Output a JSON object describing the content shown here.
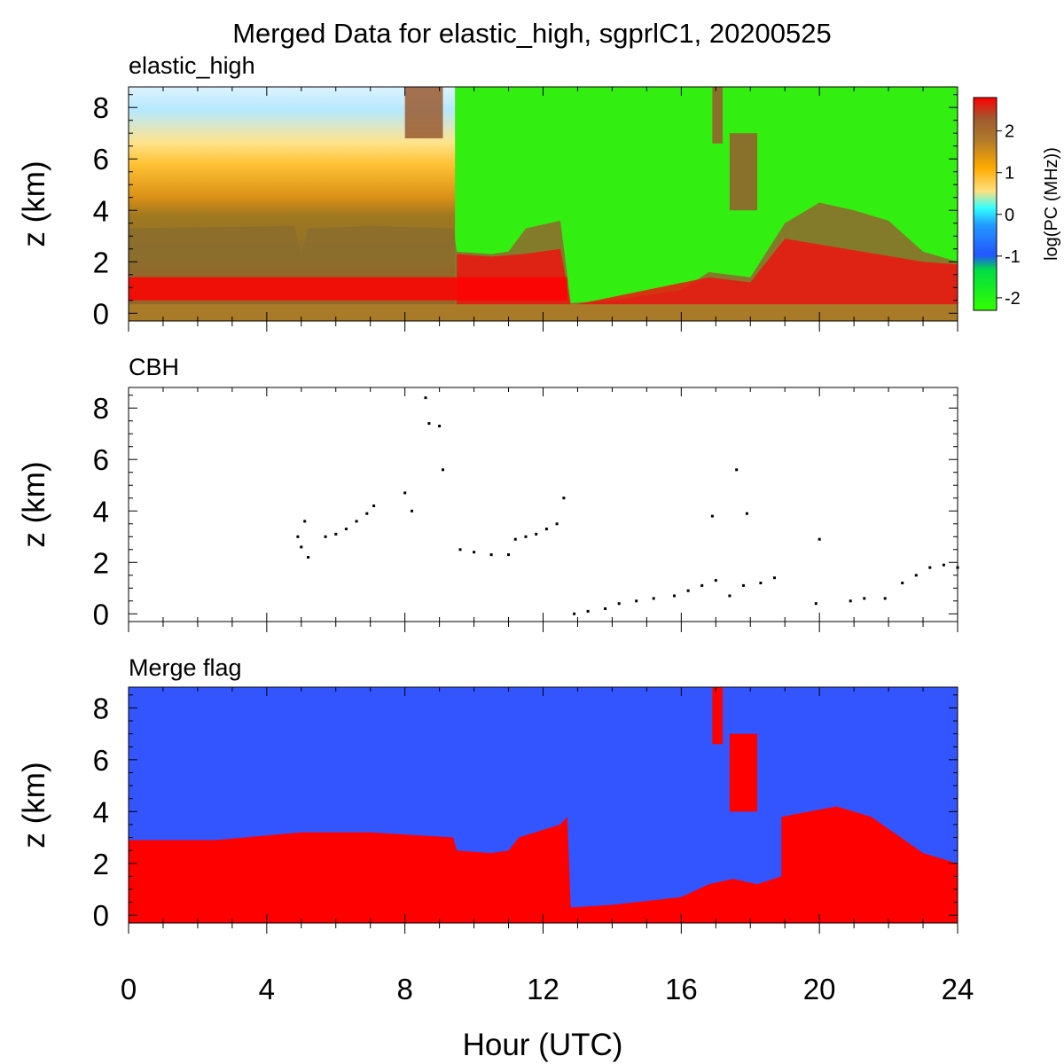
{
  "figure": {
    "title": "Merged Data for elastic_high, sgprlC1, 20200525",
    "xlabel": "Hour (UTC)"
  },
  "chart_data": [
    {
      "type": "heatmap",
      "panel_title": "elastic_high",
      "xlabel": "Hour (UTC)",
      "ylabel": "z (km)",
      "xlim": [
        0,
        24
      ],
      "ylim": [
        -0.3,
        8.8
      ],
      "xticks": [
        0,
        4,
        8,
        12,
        16,
        20,
        24
      ],
      "yticks": [
        0,
        2,
        4,
        6,
        8
      ],
      "colorbar": {
        "label": "log(PC (MHz))",
        "range": [
          -2.3,
          2.8
        ],
        "ticks": [
          2,
          1,
          0,
          -1,
          -2
        ],
        "colormap": [
          "#33ff00",
          "#2255ff",
          "#33ffff",
          "#ffaa00",
          "#996633",
          "#ff0000"
        ]
      },
      "surface_layer_top_km": [
        [
          0,
          3.3
        ],
        [
          4.8,
          3.4
        ],
        [
          5.0,
          2.3
        ],
        [
          5.2,
          3.3
        ],
        [
          7.0,
          3.4
        ],
        [
          9.4,
          3.3
        ],
        [
          9.5,
          2.4
        ],
        [
          10.5,
          2.3
        ],
        [
          11.0,
          2.4
        ],
        [
          11.5,
          3.3
        ],
        [
          12.5,
          3.6
        ],
        [
          12.8,
          0.4
        ],
        [
          14.0,
          0.5
        ],
        [
          16.0,
          0.9
        ],
        [
          16.8,
          1.6
        ],
        [
          18.0,
          1.4
        ],
        [
          19.0,
          3.5
        ],
        [
          20.0,
          4.3
        ],
        [
          21.0,
          4.0
        ],
        [
          22.0,
          3.6
        ],
        [
          23.0,
          2.4
        ],
        [
          24.0,
          2.0
        ]
      ],
      "cloud_features": [
        {
          "name": "elevated cloud near 8h",
          "x": [
            8.0,
            9.1
          ],
          "z": [
            8.8,
            6.8
          ]
        },
        {
          "name": "elevated cloud near 17h",
          "x": [
            16.9,
            17.2
          ],
          "z": [
            8.8,
            6.6
          ]
        },
        {
          "name": "cloud layer 17.4-18.2h",
          "x": [
            17.4,
            18.2
          ],
          "z": [
            7.0,
            4.0
          ]
        }
      ]
    },
    {
      "type": "scatter",
      "panel_title": "CBH",
      "ylabel": "z (km)",
      "xlim": [
        0,
        24
      ],
      "ylim": [
        -0.3,
        8.8
      ],
      "yticks": [
        0,
        2,
        4,
        6,
        8
      ],
      "series": [
        {
          "x": [
            4.9,
            5.0,
            5.1,
            5.2,
            5.7,
            6.0,
            6.3,
            6.6,
            6.9,
            7.1,
            8.6,
            8.7,
            9.0,
            9.1,
            8.0,
            8.2,
            9.6,
            10.0,
            10.5,
            11.0,
            11.2,
            11.5,
            11.8,
            12.1,
            12.4,
            12.6,
            12.9,
            13.3,
            13.8,
            14.2,
            14.7,
            15.2,
            15.8,
            16.2,
            16.6,
            17.0,
            17.4,
            17.8,
            18.3,
            18.7,
            19.9,
            20.9,
            21.3,
            21.9,
            22.4,
            22.8,
            23.2,
            23.6,
            24.0,
            17.6,
            17.9,
            16.9,
            20.0
          ],
          "y": [
            3.0,
            2.6,
            3.6,
            2.2,
            3.0,
            3.1,
            3.3,
            3.6,
            3.9,
            4.2,
            8.4,
            7.4,
            7.3,
            5.6,
            4.7,
            4.0,
            2.5,
            2.4,
            2.3,
            2.3,
            2.9,
            3.0,
            3.1,
            3.3,
            3.5,
            4.5,
            0.0,
            0.1,
            0.2,
            0.4,
            0.5,
            0.6,
            0.7,
            0.9,
            1.1,
            1.3,
            0.7,
            1.1,
            1.2,
            1.4,
            0.4,
            0.5,
            0.6,
            0.6,
            1.2,
            1.5,
            1.8,
            1.9,
            1.8,
            5.6,
            3.9,
            3.8,
            2.9
          ]
        }
      ]
    },
    {
      "type": "heatmap",
      "panel_title": "Merge flag",
      "ylabel": "z (km)",
      "xlim": [
        0,
        24
      ],
      "ylim": [
        -0.3,
        8.8
      ],
      "xticks": [
        0,
        4,
        8,
        12,
        16,
        20,
        24
      ],
      "yticks": [
        0,
        2,
        4,
        6,
        8
      ],
      "colors": {
        "background": "#3355ff",
        "merged": "#ff0000"
      },
      "merged_region_top_km": [
        [
          0,
          2.9
        ],
        [
          2.5,
          2.9
        ],
        [
          5.0,
          3.2
        ],
        [
          7.0,
          3.2
        ],
        [
          9.4,
          3.0
        ],
        [
          9.5,
          2.5
        ],
        [
          10.5,
          2.4
        ],
        [
          11.0,
          2.5
        ],
        [
          11.3,
          3.0
        ],
        [
          12.5,
          3.5
        ],
        [
          12.7,
          3.8
        ],
        [
          12.8,
          0.3
        ],
        [
          14.0,
          0.4
        ],
        [
          16.0,
          0.7
        ],
        [
          16.8,
          1.2
        ],
        [
          17.5,
          1.4
        ],
        [
          18.2,
          1.2
        ],
        [
          18.9,
          1.5
        ],
        [
          18.9,
          3.8
        ],
        [
          20.5,
          4.2
        ],
        [
          21.5,
          3.8
        ],
        [
          23.0,
          2.4
        ],
        [
          24.0,
          2.0
        ]
      ]
    }
  ]
}
